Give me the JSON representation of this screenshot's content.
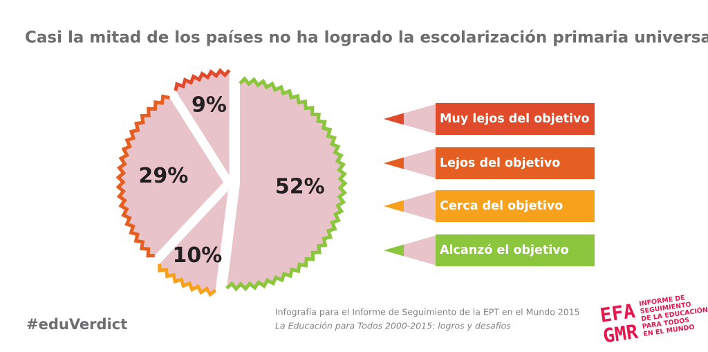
{
  "chart_data": {
    "type": "pie",
    "title": "Casi la mitad de los países no ha logrado la escolarización primaria universal",
    "categories": [
      "Muy lejos del objetivo",
      "Lejos del objetivo",
      "Cerca del objetivo",
      "Alcanzó el objetivo"
    ],
    "values": [
      9,
      29,
      10,
      52
    ],
    "value_labels": [
      "9%",
      "29%",
      "10%",
      "52%"
    ],
    "colors": [
      "#e04b2c",
      "#e55f22",
      "#f7a11c",
      "#8cc63e"
    ]
  },
  "footer": {
    "hashtag": "#eduVerdict",
    "source": "Infografía para el Informe de Seguimiento de la EPT en el Mundo 2015",
    "subtitle": "La Educación para Todos 2000-2015: logros y desafíos",
    "logo_mark": [
      "EFA",
      "GMR"
    ],
    "logo_text": [
      "INFORME DE",
      "SEGUIMIENTO",
      "DE LA EDUCACIÓN",
      "PARA TODOS",
      "EN EL MUNDO"
    ]
  }
}
